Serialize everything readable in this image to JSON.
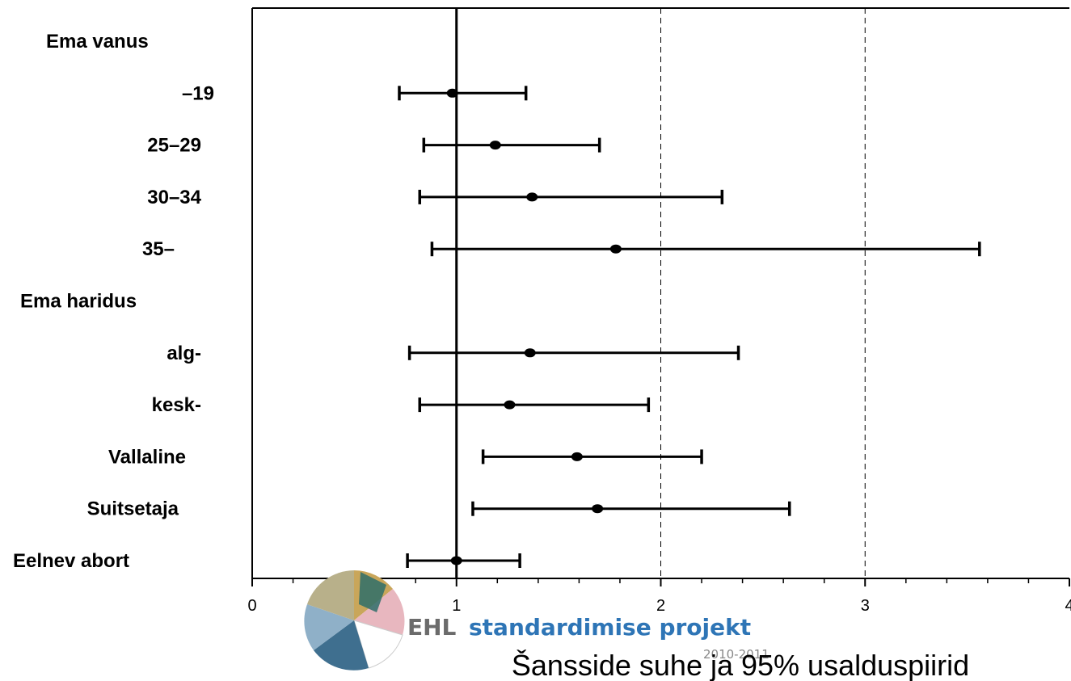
{
  "chart_data": {
    "type": "forest",
    "xlabel": "Šansside suhe ja 95% usalduspiirid",
    "xlim": [
      0,
      4
    ],
    "xticks": [
      "0",
      "1",
      "2",
      "3",
      "4"
    ],
    "reference_line": 1,
    "grid_dashed_at": [
      2,
      3
    ],
    "rows": [
      {
        "label": "Ema vanus",
        "header": true
      },
      {
        "label": "–19",
        "or": 0.98,
        "lo": 0.72,
        "hi": 1.34
      },
      {
        "label": "25–29",
        "or": 1.19,
        "lo": 0.84,
        "hi": 1.7
      },
      {
        "label": "30–34",
        "or": 1.37,
        "lo": 0.82,
        "hi": 2.3
      },
      {
        "label": "35–",
        "or": 1.78,
        "lo": 0.88,
        "hi": 3.56
      },
      {
        "label": "Ema haridus",
        "header": true
      },
      {
        "label": "alg-",
        "or": 1.36,
        "lo": 0.77,
        "hi": 2.38
      },
      {
        "label": "kesk-",
        "or": 1.26,
        "lo": 0.82,
        "hi": 1.94
      },
      {
        "label": "Vallaline",
        "or": 1.59,
        "lo": 1.13,
        "hi": 2.2
      },
      {
        "label": "Suitsetaja",
        "or": 1.69,
        "lo": 1.08,
        "hi": 2.63
      },
      {
        "label": "Eelnev abort",
        "or": 1.0,
        "lo": 0.76,
        "hi": 1.31
      }
    ]
  },
  "logo": {
    "brand": "EHL",
    "name": "standardimise projekt",
    "years": "2010-2011",
    "brand_color": "#6b6b6b",
    "name_color": "#2e75b6"
  }
}
